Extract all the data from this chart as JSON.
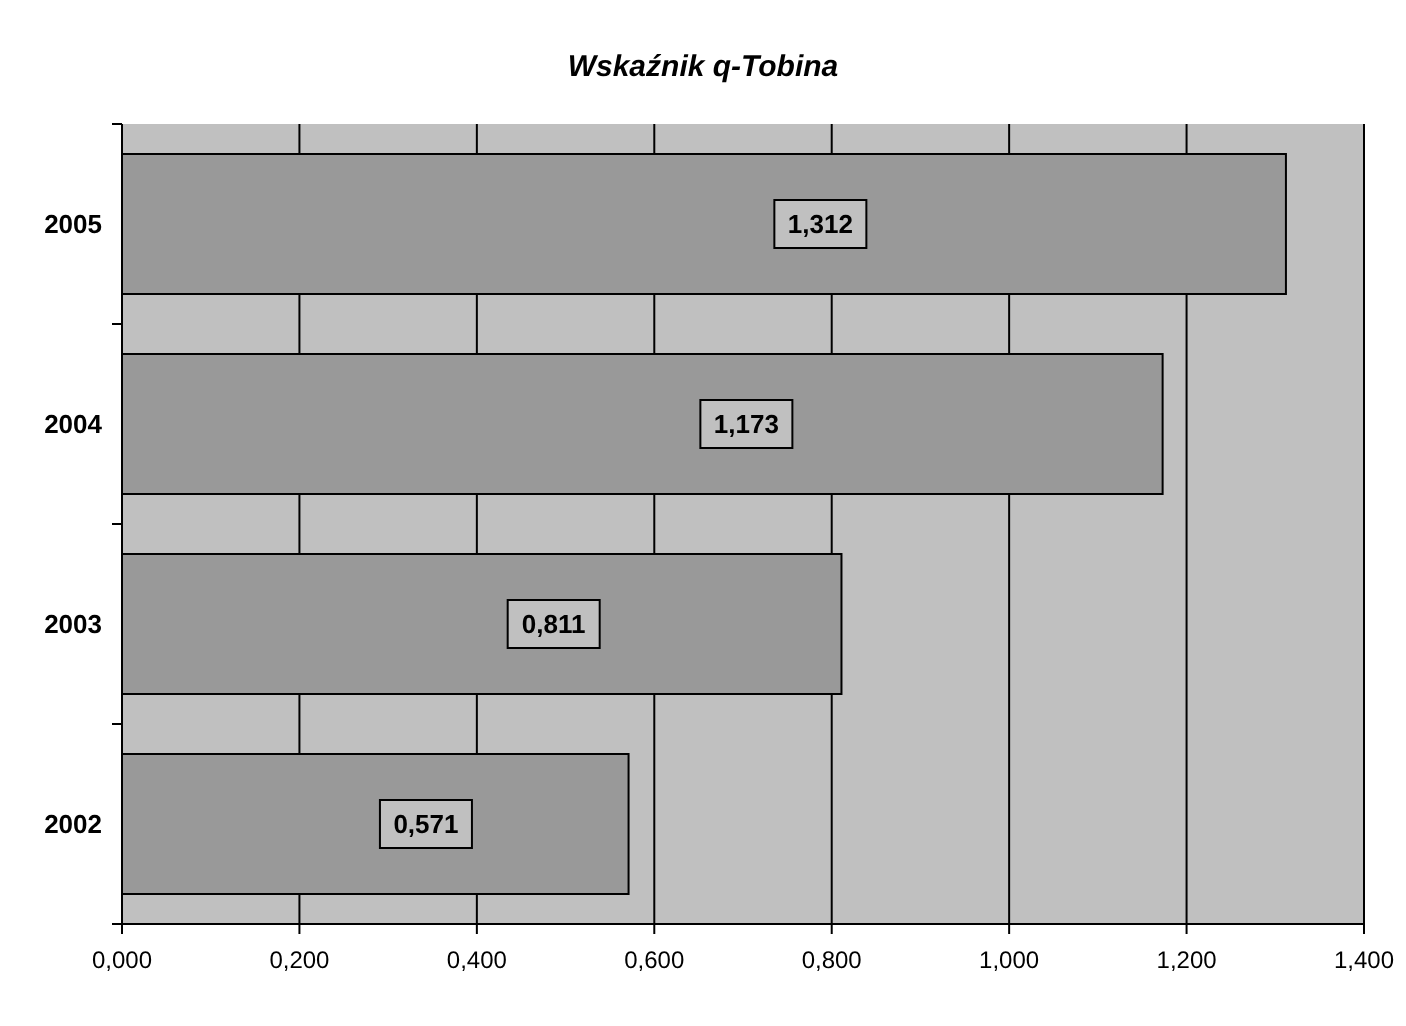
{
  "chart_data": {
    "type": "bar",
    "orientation": "horizontal",
    "title": "Wskaźnik q-Tobina",
    "categories": [
      "2005",
      "2004",
      "2003",
      "2002"
    ],
    "values": [
      1.312,
      1.173,
      0.811,
      0.571
    ],
    "value_labels": [
      "1,312",
      "1,173",
      "0,811",
      "0,571"
    ],
    "color": "#999999",
    "xlim": [
      0,
      1.4
    ],
    "xticks": [
      {
        "value": 0,
        "label": "0,000"
      },
      {
        "value": 0.2,
        "label": "0,200"
      },
      {
        "value": 0.4,
        "label": "0,400"
      },
      {
        "value": 0.6,
        "label": "0,600"
      },
      {
        "value": 0.8,
        "label": "0,800"
      },
      {
        "value": 1.0,
        "label": "1,000"
      },
      {
        "value": 1.2,
        "label": "1,200"
      },
      {
        "value": 1.4,
        "label": "1,400"
      }
    ],
    "grid": "x"
  }
}
